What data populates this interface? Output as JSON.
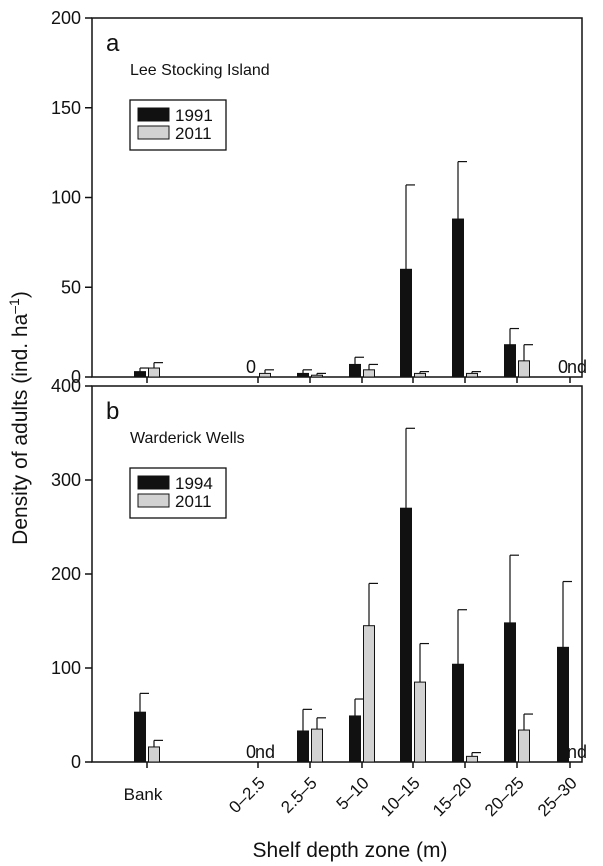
{
  "figure": {
    "ylabel": "Density of adults (ind. ha",
    "ylabel_sup": "–1",
    "ylabel_close": ")",
    "xlabel": "Shelf depth zone (m)"
  },
  "chart_data": [
    {
      "type": "bar",
      "panel_letter": "a",
      "site": "Lee Stocking Island",
      "ylim": [
        0,
        200
      ],
      "yticks": [
        "0",
        "50",
        "100",
        "150",
        "200"
      ],
      "categories": [
        "Bank",
        "0–2.5",
        "2.5–5",
        "5–10",
        "10–15",
        "15–20",
        "20–25",
        "25–30"
      ],
      "series": [
        {
          "name": "1991",
          "color": "#111111",
          "values": [
            3,
            null,
            2,
            7,
            60,
            88,
            18,
            null
          ],
          "errors": [
            2,
            null,
            2,
            4,
            47,
            32,
            9,
            null
          ]
        },
        {
          "name": "2011",
          "color": "#d2d2d2",
          "values": [
            5,
            2,
            1,
            4,
            2,
            2,
            9,
            null
          ],
          "errors": [
            3,
            2,
            1,
            3,
            1,
            1,
            9,
            null
          ]
        }
      ],
      "annotations": [
        {
          "category": "0–2.5",
          "series": "1991",
          "text": "0"
        },
        {
          "category": "25–30",
          "series": "1991",
          "text": "0"
        },
        {
          "category": "25–30",
          "series": "2011",
          "text": "nd"
        }
      ],
      "legend_position": "top-left",
      "grid": false
    },
    {
      "type": "bar",
      "panel_letter": "b",
      "site": "Warderick Wells",
      "ylim": [
        0,
        400
      ],
      "yticks": [
        "0",
        "100",
        "200",
        "300",
        "400"
      ],
      "categories": [
        "Bank",
        "0–2.5",
        "2.5–5",
        "5–10",
        "10–15",
        "15–20",
        "20–25",
        "25–30"
      ],
      "series": [
        {
          "name": "1994",
          "color": "#111111",
          "values": [
            53,
            null,
            33,
            49,
            270,
            104,
            148,
            122
          ],
          "errors": [
            20,
            null,
            23,
            18,
            85,
            58,
            72,
            70
          ]
        },
        {
          "name": "2011",
          "color": "#d2d2d2",
          "values": [
            16,
            null,
            35,
            145,
            85,
            6,
            34,
            null
          ],
          "errors": [
            7,
            null,
            12,
            45,
            41,
            4,
            17,
            null
          ]
        }
      ],
      "annotations": [
        {
          "category": "0–2.5",
          "series": "1994",
          "text": "0"
        },
        {
          "category": "0–2.5",
          "series": "2011",
          "text": "nd"
        },
        {
          "category": "25–30",
          "series": "2011",
          "text": "nd"
        }
      ],
      "legend_position": "top-left",
      "grid": false
    }
  ]
}
